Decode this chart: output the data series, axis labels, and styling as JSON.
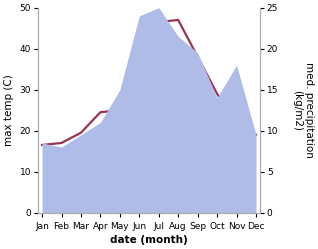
{
  "months": [
    "Jan",
    "Feb",
    "Mar",
    "Apr",
    "May",
    "Jun",
    "Jul",
    "Aug",
    "Sep",
    "Oct",
    "Nov",
    "Dec"
  ],
  "temp_max": [
    16.5,
    17.0,
    19.5,
    24.5,
    25.0,
    34.0,
    46.5,
    47.0,
    38.0,
    29.0,
    22.0,
    19.0
  ],
  "precipitation": [
    8.5,
    8.0,
    9.5,
    11.0,
    15.0,
    24.0,
    25.0,
    21.5,
    19.5,
    14.0,
    18.0,
    9.5
  ],
  "temp_ylim": [
    0,
    50
  ],
  "precip_ylim": [
    0,
    25
  ],
  "temp_yticks": [
    0,
    10,
    20,
    30,
    40,
    50
  ],
  "precip_yticks": [
    0,
    5,
    10,
    15,
    20,
    25
  ],
  "xlabel": "date (month)",
  "ylabel_left": "max temp (C)",
  "ylabel_right": "med. precipitation\n(kg/m2)",
  "temp_color": "#993355",
  "precip_fill_color": "#b0bce8",
  "precip_edge_color": "#b0bce8",
  "background_color": "#ffffff",
  "line_width": 1.6,
  "label_fontsize": 7.5,
  "tick_fontsize": 6.5,
  "spine_color": "#aaaaaa"
}
